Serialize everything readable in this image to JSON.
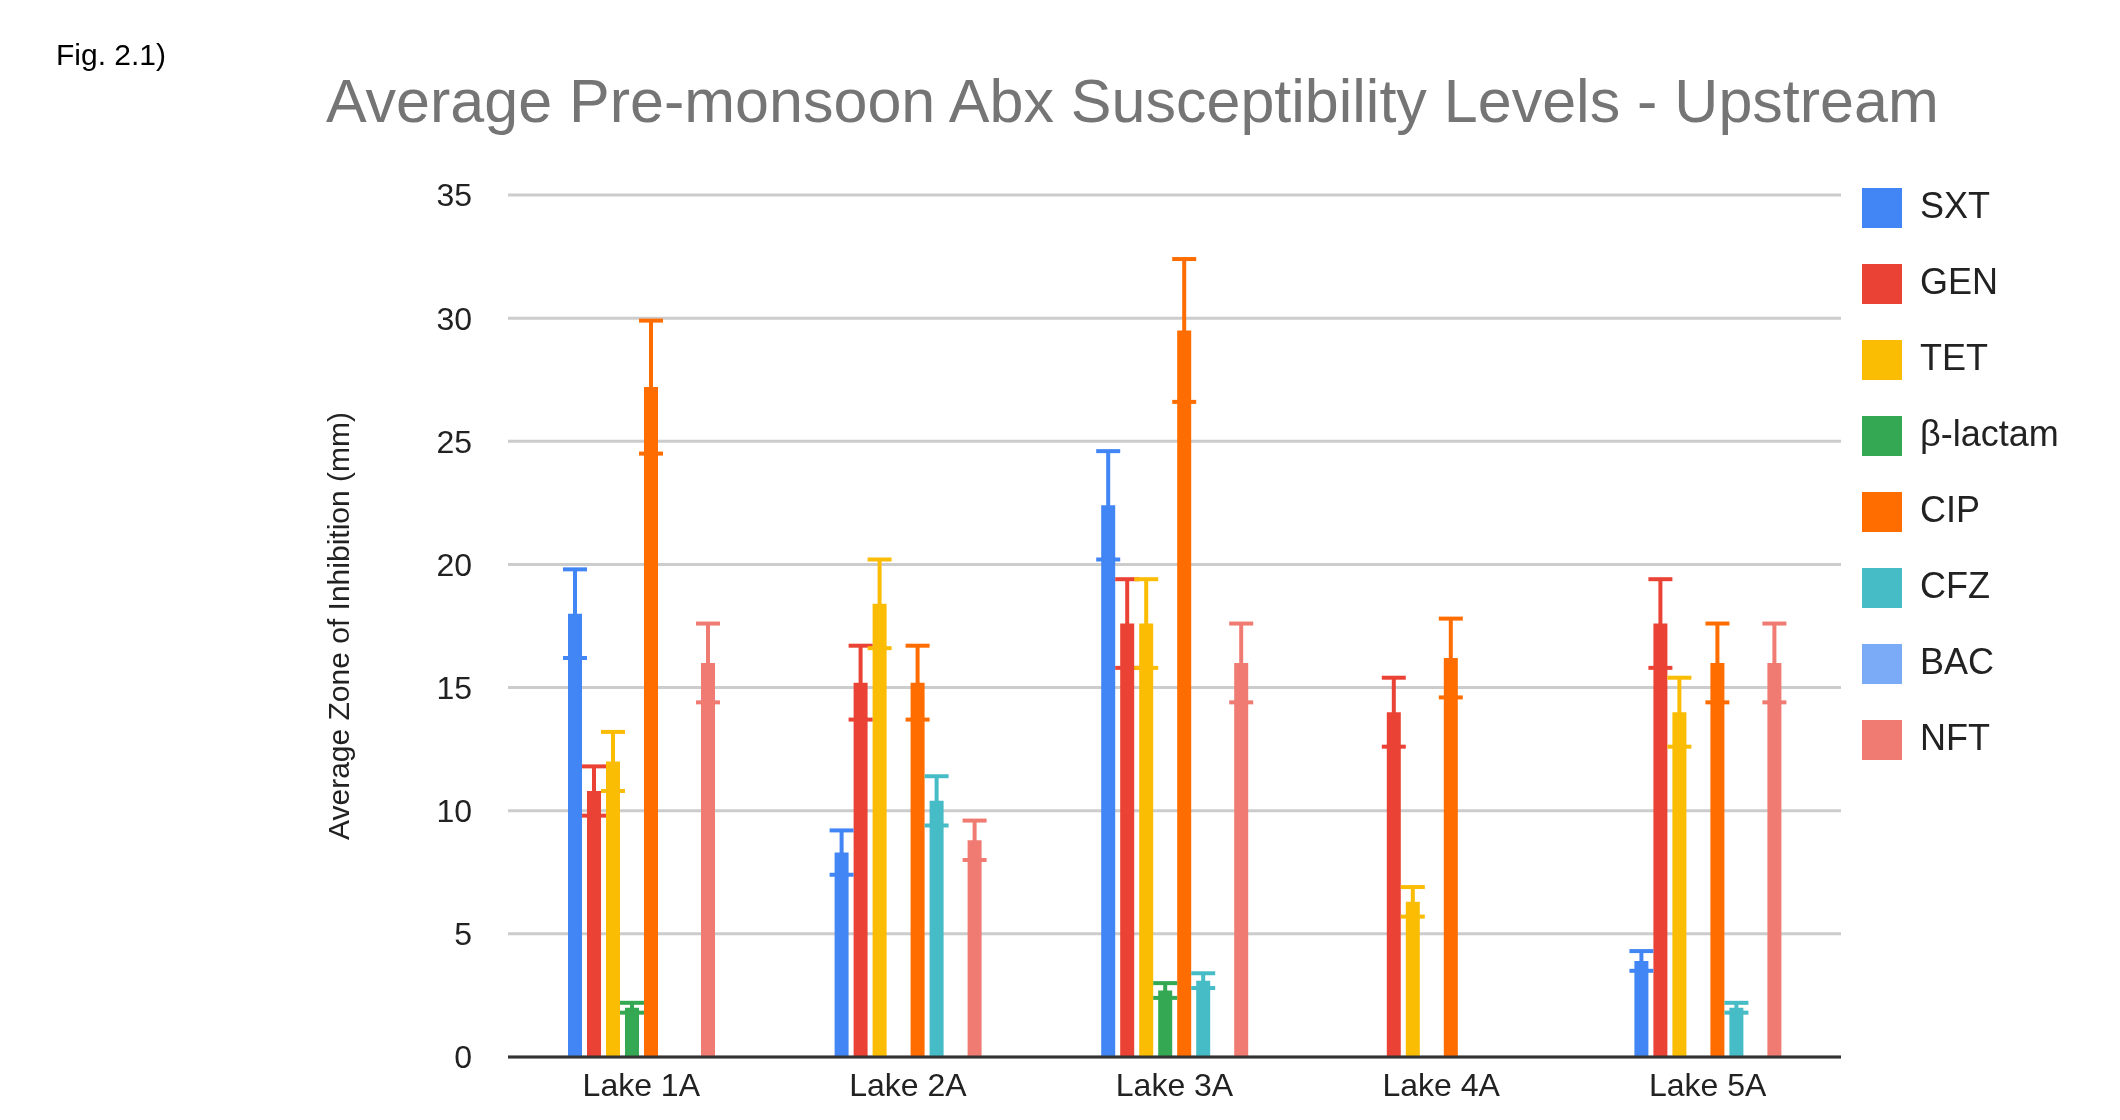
{
  "chart_data": {
    "type": "bar",
    "title": "Average Pre-monsoon Abx Susceptibility Levels - Upstream",
    "ylabel": "Average Zone of Inhibition (mm)",
    "annotations": [
      "Fig. 2.1)"
    ],
    "categories": [
      "Lake 1A",
      "Lake 2A",
      "Lake 3A",
      "Lake 4A",
      "Lake 5A"
    ],
    "series": [
      {
        "name": "SXT",
        "color": "#4285f4",
        "values": [
          18,
          8.3,
          22.4,
          null,
          3.9
        ],
        "errors": [
          1.8,
          0.9,
          2.2,
          null,
          0.4
        ]
      },
      {
        "name": "GEN",
        "color": "#ea4335",
        "values": [
          10.8,
          15.2,
          17.6,
          14,
          17.6
        ],
        "errors": [
          1,
          1.5,
          1.8,
          1.4,
          1.8
        ]
      },
      {
        "name": "TET",
        "color": "#fbbc04",
        "values": [
          12,
          18.4,
          17.6,
          6.3,
          14
        ],
        "errors": [
          1.2,
          1.8,
          1.8,
          0.6,
          1.4
        ]
      },
      {
        "name": "β-lactam",
        "color": "#34a853",
        "values": [
          2,
          null,
          2.7,
          null,
          null
        ],
        "errors": [
          0.2,
          null,
          0.3,
          null,
          null
        ]
      },
      {
        "name": "CIP",
        "color": "#ff6d01",
        "values": [
          27.2,
          15.2,
          29.5,
          16.2,
          16
        ],
        "errors": [
          2.7,
          1.5,
          2.9,
          1.6,
          1.6
        ]
      },
      {
        "name": "CFZ",
        "color": "#46bdc6",
        "values": [
          null,
          10.4,
          3.1,
          null,
          2
        ],
        "errors": [
          null,
          1,
          0.3,
          null,
          0.2
        ]
      },
      {
        "name": "BAC",
        "color": "#7baaf7",
        "values": [
          null,
          null,
          null,
          null,
          null
        ]
      },
      {
        "name": "NFT",
        "color": "#f07b72",
        "values": [
          16,
          8.8,
          16,
          null,
          16
        ],
        "errors": [
          1.6,
          0.8,
          1.6,
          null,
          1.6
        ]
      }
    ],
    "ylim": [
      0,
      35
    ],
    "yticks": [
      0,
      5,
      10,
      15,
      20,
      25,
      30,
      35
    ],
    "grid": "y",
    "legend": "right"
  }
}
